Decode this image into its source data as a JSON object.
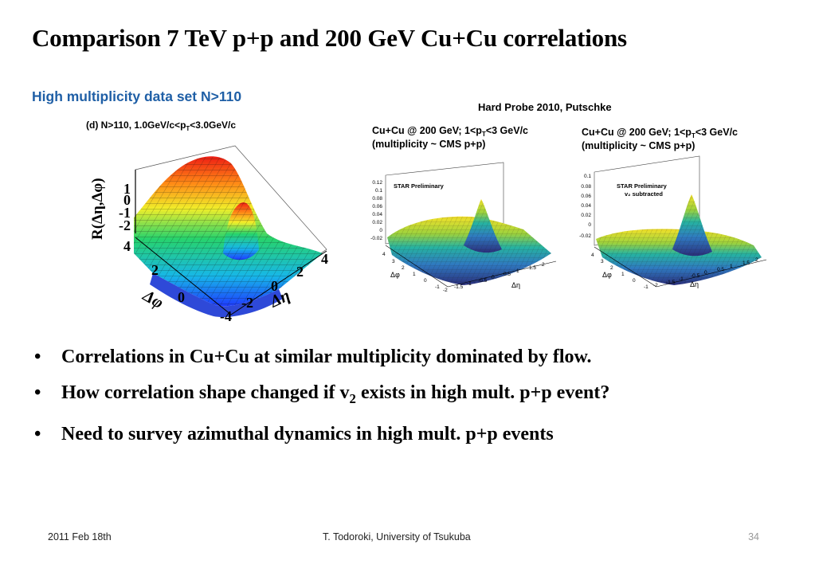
{
  "slide": {
    "title": "Comparison 7 TeV p+p and 200 GeV Cu+Cu correlations",
    "subtitle": "High multiplicity data set N>110",
    "credit": "Hard Probe 2010, Putschke"
  },
  "figure_left": {
    "panel_label": "(d) N>110, 1.0GeV/c<p",
    "panel_label_sub": "T",
    "panel_label_end": "<3.0GeV/c",
    "zlabel": "R(Δη,Δφ)",
    "zticks": [
      "1",
      "0",
      "-1",
      "-2"
    ],
    "phi_label": "Δφ",
    "phi_ticks": [
      "4",
      "2",
      "0"
    ],
    "eta_label": "Δη",
    "eta_ticks": [
      "4",
      "2",
      "0",
      "-2",
      "-4"
    ]
  },
  "figure_mid": {
    "caption_line1": "Cu+Cu @ 200 GeV; 1<p",
    "caption_line1_sub": "T",
    "caption_line1_end": "<3 GeV/c",
    "caption_line2": "(multiplicity ~ CMS p+p)",
    "inner_label": "STAR Preliminary",
    "zticks": [
      "0.12",
      "0.1",
      "0.08",
      "0.06",
      "0.04",
      "0.02",
      "0",
      "-0.02"
    ],
    "phi_label": "Δφ",
    "eta_label": "Δη",
    "phi_ticks": [
      "4",
      "3",
      "2",
      "1",
      "0",
      "-1"
    ],
    "eta_ticks": [
      "-2",
      "-1.5",
      "-1",
      "-0.5",
      "0",
      "0.5",
      "1",
      "1.5",
      "2"
    ]
  },
  "figure_right": {
    "caption_line1": "Cu+Cu @ 200 GeV; 1<p",
    "caption_line1_sub": "T",
    "caption_line1_end": "<3 GeV/c",
    "caption_line2": "(multiplicity ~ CMS p+p)",
    "inner_label": "STAR Preliminary",
    "inner_label2": "v₂ subtracted",
    "zticks": [
      "0.1",
      "0.08",
      "0.06",
      "0.04",
      "0.02",
      "0",
      "-0.02"
    ],
    "phi_label": "Δφ",
    "eta_label": "Δη",
    "phi_ticks": [
      "4",
      "3",
      "2",
      "1",
      "0",
      "-1"
    ],
    "eta_ticks": [
      "-2",
      "-1.5",
      "-1",
      "-0.5",
      "0",
      "0.5",
      "1",
      "1.5",
      "2"
    ]
  },
  "bullets": [
    {
      "text": "Correlations in Cu+Cu at similar multiplicity dominated by flow."
    },
    {
      "text_a": "How correlation shape changed if v",
      "sub": "2",
      "text_b": " exists in high mult. p+p event?"
    },
    {
      "text": "Need to survey azimuthal dynamics in high mult. p+p events"
    }
  ],
  "footer": {
    "date": "2011 Feb 18th",
    "author": "T. Todoroki, University of Tsukuba",
    "page": "34"
  }
}
